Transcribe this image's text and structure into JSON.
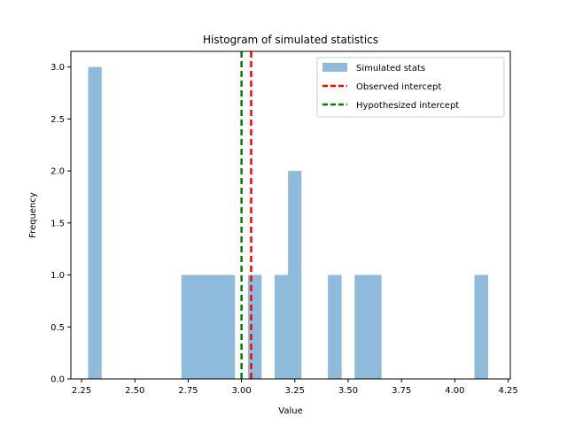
{
  "chart_data": {
    "type": "bar",
    "title": "Histogram of simulated statistics",
    "xlabel": "Value",
    "ylabel": "Frequency",
    "xlim": [
      2.2,
      4.26
    ],
    "ylim": [
      0,
      3.15
    ],
    "xticks": [
      2.25,
      2.5,
      2.75,
      3.0,
      3.25,
      3.5,
      3.75,
      4.0,
      4.25
    ],
    "xtick_labels": [
      "2.25",
      "2.50",
      "2.75",
      "3.00",
      "3.25",
      "3.50",
      "3.75",
      "4.00",
      "4.25"
    ],
    "yticks": [
      0,
      0.5,
      1.0,
      1.5,
      2.0,
      2.5,
      3.0
    ],
    "ytick_labels": [
      "0.0",
      "0.5",
      "1.0",
      "1.5",
      "2.0",
      "2.5",
      "3.0"
    ],
    "grid": false,
    "legend_position": "top-right",
    "bins": [
      {
        "x0": 2.281,
        "x1": 2.343,
        "count": 3
      },
      {
        "x0": 2.718,
        "x1": 2.78,
        "count": 1
      },
      {
        "x0": 2.78,
        "x1": 2.843,
        "count": 1
      },
      {
        "x0": 2.843,
        "x1": 2.905,
        "count": 1
      },
      {
        "x0": 2.905,
        "x1": 2.968,
        "count": 1
      },
      {
        "x0": 3.03,
        "x1": 3.093,
        "count": 1
      },
      {
        "x0": 3.155,
        "x1": 3.218,
        "count": 1
      },
      {
        "x0": 3.218,
        "x1": 3.28,
        "count": 2
      },
      {
        "x0": 3.405,
        "x1": 3.468,
        "count": 1
      },
      {
        "x0": 3.53,
        "x1": 3.593,
        "count": 1
      },
      {
        "x0": 3.593,
        "x1": 3.655,
        "count": 1
      },
      {
        "x0": 4.092,
        "x1": 4.155,
        "count": 1
      }
    ],
    "series": [
      {
        "name": "Simulated stats",
        "kind": "histogram",
        "color": "#8ebadb"
      },
      {
        "name": "Observed intercept",
        "kind": "vline",
        "value": 3.045,
        "color": "#ff0000"
      },
      {
        "name": "Hypothesized intercept",
        "kind": "vline",
        "value": 3.0,
        "color": "#008000"
      }
    ]
  }
}
